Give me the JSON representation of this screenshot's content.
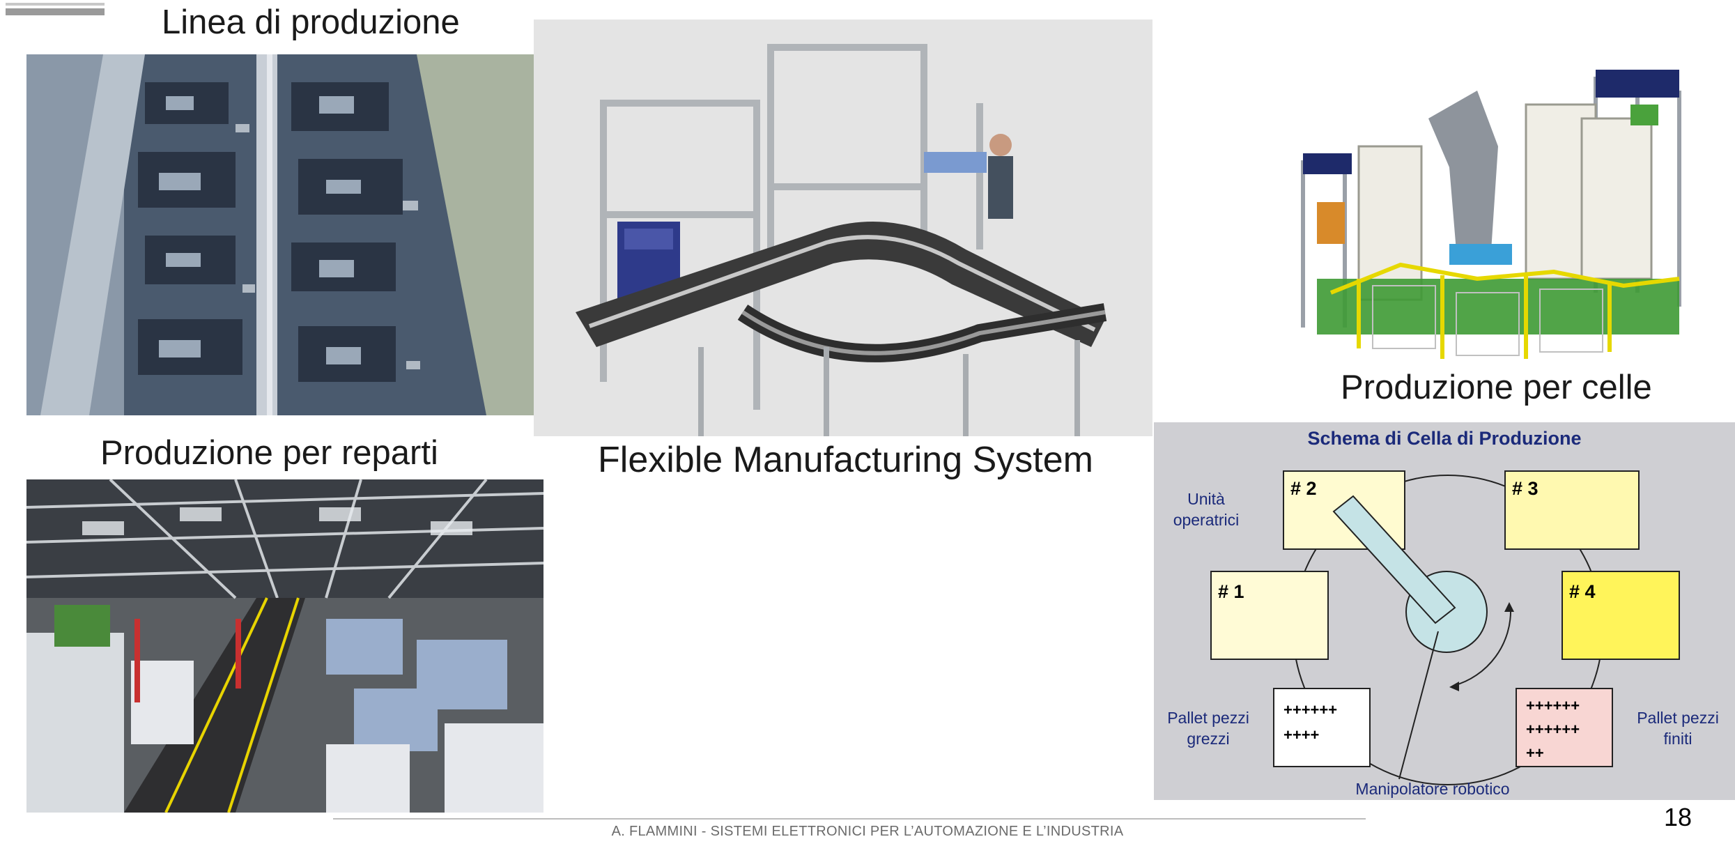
{
  "captions": {
    "linea": "Linea di produzione",
    "reparti": "Produzione per reparti",
    "fms": "Flexible Manufacturing System",
    "celle": "Produzione per celle"
  },
  "schema": {
    "title": "Schema di Cella di Produzione",
    "unita": [
      "Unità",
      "operatrici"
    ],
    "box1": "# 1",
    "box2": "# 2",
    "box3": "# 3",
    "box4": "# 4",
    "pallet_grezzi_label": [
      "Pallet pezzi",
      "grezzi"
    ],
    "pallet_finiti_label": [
      "Pallet pezzi",
      "finiti"
    ],
    "pallet_grezzi_rows": [
      "++++++",
      "++++"
    ],
    "pallet_finiti_rows": [
      "++++++",
      "++++++",
      "++"
    ],
    "manipolatore": "Manipolatore robotico",
    "colors": {
      "title": "#1b2a7a",
      "box_pale": "#fffbd0",
      "box_yellow": "#fff45a",
      "box_pink": "#f8d6d3",
      "hub": "#c5e3e6"
    }
  },
  "footer": {
    "text": "A. FLAMMINI - SISTEMI ELETTRONICI PER L’AUTOMAZIONE E L’INDUSTRIA",
    "page": "18"
  }
}
